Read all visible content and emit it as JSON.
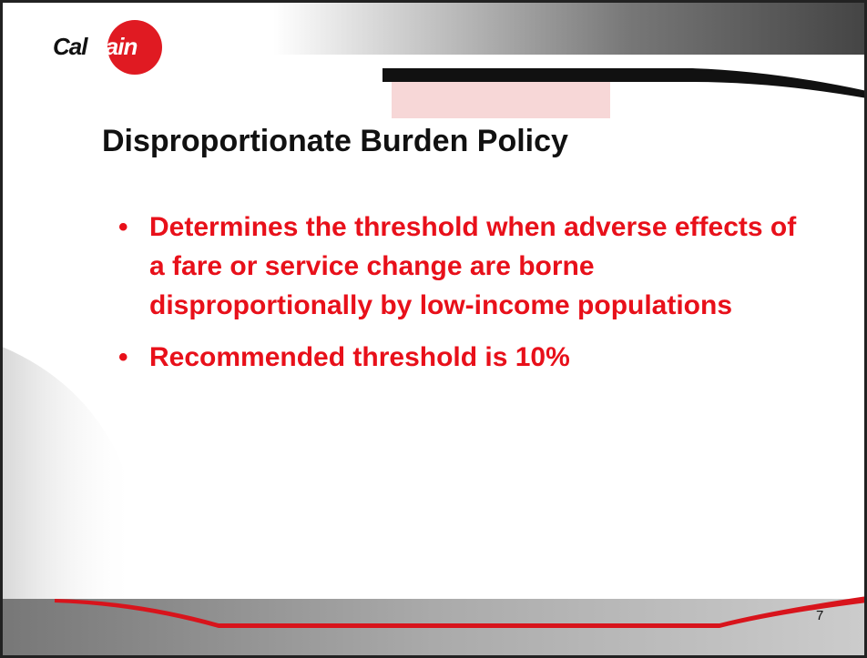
{
  "logo": {
    "part1": "Cal",
    "part2": "train"
  },
  "slide": {
    "title": "Disproportionate Burden Policy",
    "bullets": [
      "Determines the threshold when adverse effects of a fare or service change are borne disproportionally by low-income populations",
      "Recommended threshold is 10%"
    ],
    "page_number": "7"
  }
}
